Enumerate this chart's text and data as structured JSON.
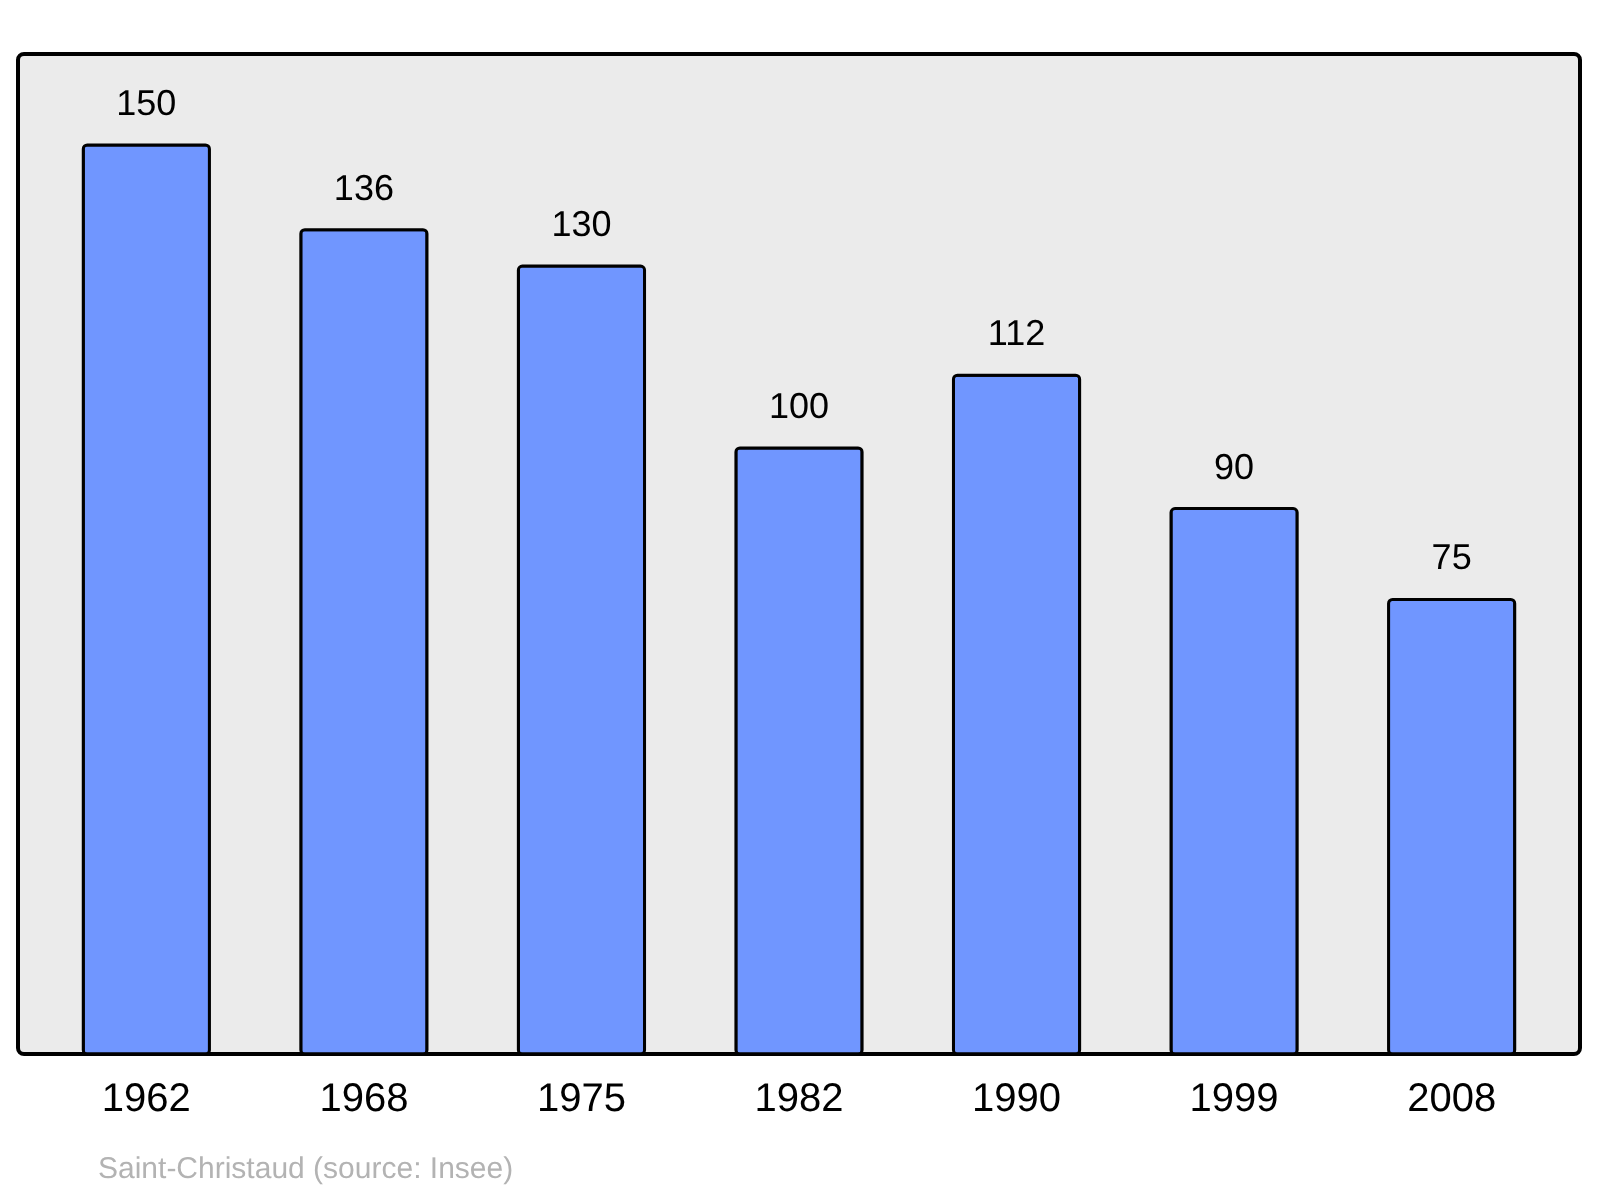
{
  "chart_data": {
    "type": "bar",
    "categories": [
      "1962",
      "1968",
      "1975",
      "1982",
      "1990",
      "1999",
      "2008"
    ],
    "values": [
      150,
      136,
      130,
      100,
      112,
      90,
      75
    ],
    "color": "#7096ff",
    "data_labels": true,
    "grid": false,
    "annotations": [
      "Saint-Christaud    (source: Insee)"
    ]
  }
}
